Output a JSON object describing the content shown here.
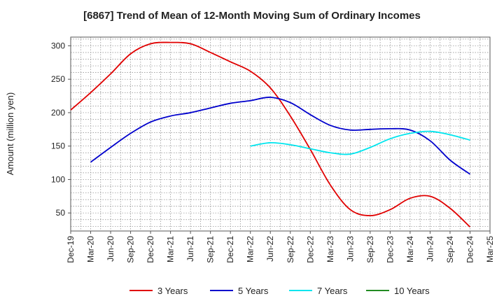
{
  "chart_data": {
    "type": "line",
    "title": "[6867]  Trend of Mean of 12-Month Moving Sum of Ordinary Incomes",
    "xlabel": "",
    "ylabel": "Amount (million yen)",
    "ylim": [
      23,
      313
    ],
    "yticks": [
      50,
      100,
      150,
      200,
      250,
      300
    ],
    "x": [
      "Dec-19",
      "Mar-20",
      "Jun-20",
      "Sep-20",
      "Dec-20",
      "Mar-21",
      "Jun-21",
      "Sep-21",
      "Dec-21",
      "Mar-22",
      "Jun-22",
      "Sep-22",
      "Dec-22",
      "Mar-23",
      "Jun-23",
      "Sep-23",
      "Dec-23",
      "Mar-24",
      "Jun-24",
      "Sep-24",
      "Dec-24",
      "Mar-25"
    ],
    "grid": true,
    "legend_position": "bottom",
    "series": [
      {
        "name": "3 Years",
        "color": "#e00000",
        "values": [
          204,
          230,
          258,
          288,
          303,
          305,
          303,
          290,
          276,
          262,
          237,
          195,
          145,
          92,
          55,
          46,
          55,
          72,
          75,
          57,
          29,
          null
        ]
      },
      {
        "name": "5 Years",
        "color": "#0000cc",
        "values": [
          null,
          126,
          148,
          169,
          186,
          195,
          200,
          207,
          214,
          218,
          223,
          215,
          197,
          181,
          174,
          175,
          176,
          174,
          158,
          129,
          108,
          null
        ]
      },
      {
        "name": "7 Years",
        "color": "#00e5ee",
        "values": [
          null,
          null,
          null,
          null,
          null,
          null,
          null,
          null,
          null,
          150,
          155,
          152,
          146,
          140,
          138,
          148,
          161,
          169,
          172,
          167,
          159,
          null
        ]
      },
      {
        "name": "10 Years",
        "color": "#228b22",
        "values": [
          null,
          null,
          null,
          null,
          null,
          null,
          null,
          null,
          null,
          null,
          null,
          null,
          null,
          null,
          null,
          null,
          null,
          null,
          null,
          null,
          null,
          null
        ]
      }
    ]
  }
}
